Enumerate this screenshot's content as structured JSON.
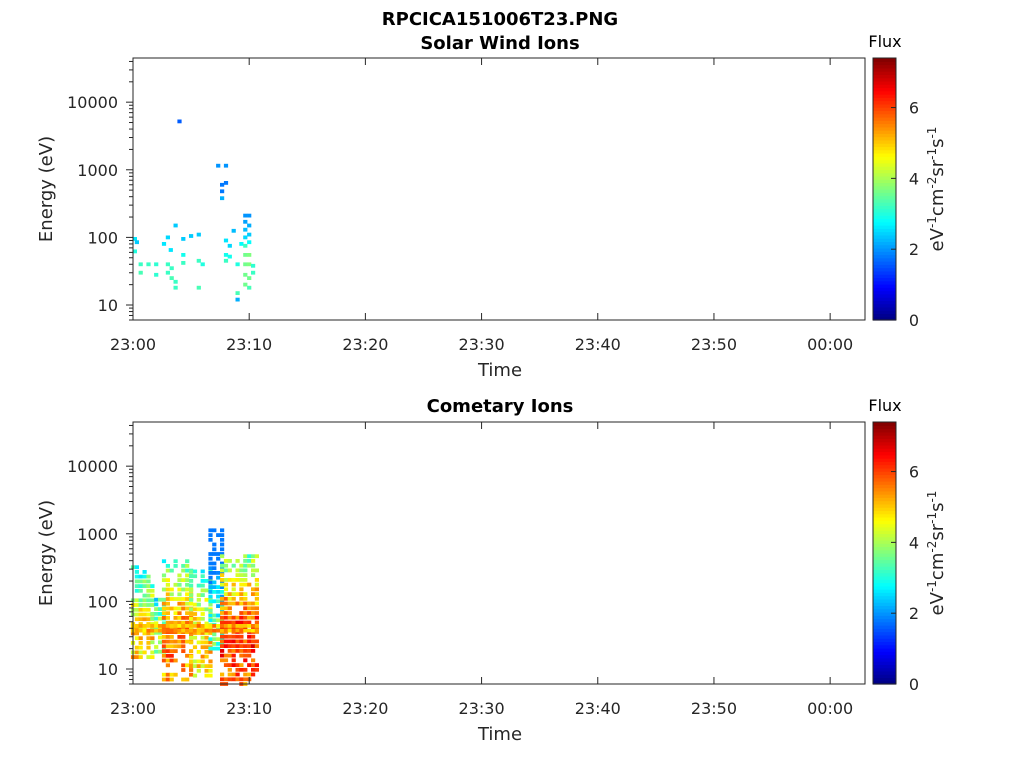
{
  "figure": {
    "main_title": "RPCICA151006T23.PNG"
  },
  "colormap": [
    "#00007f",
    "#0000ff",
    "#007fff",
    "#00ffff",
    "#7fff7f",
    "#ffff00",
    "#ff7f00",
    "#ff0000",
    "#7f0000"
  ],
  "chart_data": [
    {
      "type": "heatmap",
      "title": "Solar Wind Ions",
      "xlabel": "Time",
      "ylabel": "Energy (eV)",
      "x_range": [
        "23:00",
        "00:03"
      ],
      "x_ticks": [
        "23:00",
        "23:10",
        "23:20",
        "23:30",
        "23:40",
        "23:50",
        "00:00"
      ],
      "y_scale": "log",
      "y_range": [
        6,
        45000
      ],
      "y_ticks": [
        {
          "value": 10,
          "label": "10"
        },
        {
          "value": 100,
          "label": "100"
        },
        {
          "value": 1000,
          "label": "1000"
        },
        {
          "value": 10000,
          "label": "10000"
        }
      ],
      "colorbar": {
        "title": "Flux",
        "label": "eV-1cm-2sr-1s-1",
        "range": [
          0,
          7.4
        ],
        "ticks": [
          "0",
          "2",
          "4",
          "6"
        ]
      },
      "cells": [
        [
          "23:00:10",
          95,
          2.6
        ],
        [
          "23:00:10",
          62,
          3.0
        ],
        [
          "23:00:20",
          85,
          2.4
        ],
        [
          "23:00:40",
          40,
          3.2
        ],
        [
          "23:00:40",
          30,
          3.3
        ],
        [
          "23:01:20",
          40,
          3.2
        ],
        [
          "23:02:00",
          40,
          3.1
        ],
        [
          "23:02:00",
          28,
          3.1
        ],
        [
          "23:02:40",
          80,
          2.6
        ],
        [
          "23:03:00",
          100,
          2.5
        ],
        [
          "23:03:00",
          40,
          3.2
        ],
        [
          "23:03:00",
          30,
          3.2
        ],
        [
          "23:03:15",
          65,
          2.6
        ],
        [
          "23:03:20",
          35,
          3.2
        ],
        [
          "23:03:20",
          25,
          3.3
        ],
        [
          "23:03:40",
          150,
          2.4
        ],
        [
          "23:03:40",
          22,
          3.2
        ],
        [
          "23:03:40",
          18,
          3.2
        ],
        [
          "23:04:00",
          5200,
          1.6
        ],
        [
          "23:04:20",
          95,
          2.4
        ],
        [
          "23:04:20",
          55,
          2.9
        ],
        [
          "23:04:20",
          42,
          3.2
        ],
        [
          "23:05:00",
          105,
          2.4
        ],
        [
          "23:05:40",
          110,
          2.4
        ],
        [
          "23:05:40",
          45,
          3.2
        ],
        [
          "23:05:40",
          18,
          3.3
        ],
        [
          "23:06:00",
          40,
          3.0
        ],
        [
          "23:07:20",
          1150,
          2.0
        ],
        [
          "23:07:40",
          600,
          1.8
        ],
        [
          "23:07:40",
          480,
          1.8
        ],
        [
          "23:07:40",
          380,
          2.2
        ],
        [
          "23:08:00",
          1150,
          2.0
        ],
        [
          "23:08:00",
          640,
          1.8
        ],
        [
          "23:08:00",
          90,
          2.6
        ],
        [
          "23:08:00",
          55,
          2.9
        ],
        [
          "23:08:00",
          45,
          3.2
        ],
        [
          "23:08:20",
          75,
          2.5
        ],
        [
          "23:08:20",
          52,
          2.9
        ],
        [
          "23:08:40",
          125,
          2.3
        ],
        [
          "23:09:00",
          12,
          2.2
        ],
        [
          "23:09:00",
          15,
          3.3
        ],
        [
          "23:09:00",
          40,
          3.0
        ],
        [
          "23:09:20",
          80,
          2.8
        ],
        [
          "23:09:40",
          210,
          2.0
        ],
        [
          "23:09:40",
          170,
          2.1
        ],
        [
          "23:09:40",
          130,
          2.3
        ],
        [
          "23:09:40",
          100,
          2.5
        ],
        [
          "23:09:40",
          75,
          3.2
        ],
        [
          "23:09:40",
          55,
          3.6
        ],
        [
          "23:09:40",
          40,
          3.6
        ],
        [
          "23:09:40",
          28,
          3.6
        ],
        [
          "23:09:40",
          20,
          3.6
        ],
        [
          "23:10:00",
          210,
          2.0
        ],
        [
          "23:10:00",
          150,
          2.2
        ],
        [
          "23:10:00",
          110,
          2.4
        ],
        [
          "23:10:00",
          85,
          2.8
        ],
        [
          "23:10:00",
          55,
          3.7
        ],
        [
          "23:10:00",
          40,
          3.7
        ],
        [
          "23:10:00",
          25,
          3.6
        ],
        [
          "23:10:00",
          18,
          3.3
        ],
        [
          "23:10:20",
          38,
          3.1
        ],
        [
          "23:10:20",
          30,
          3.2
        ]
      ]
    },
    {
      "type": "heatmap",
      "title": "Cometary Ions",
      "xlabel": "Time",
      "ylabel": "Energy (eV)",
      "x_range": [
        "23:00",
        "00:03"
      ],
      "x_ticks": [
        "23:00",
        "23:10",
        "23:20",
        "23:30",
        "23:40",
        "23:50",
        "00:00"
      ],
      "y_scale": "log",
      "y_range": [
        6,
        45000
      ],
      "y_ticks": [
        {
          "value": 10,
          "label": "10"
        },
        {
          "value": 100,
          "label": "100"
        },
        {
          "value": 1000,
          "label": "1000"
        },
        {
          "value": 10000,
          "label": "10000"
        }
      ],
      "colorbar": {
        "title": "Flux",
        "label": "eV-1cm-2sr-1s-1",
        "range": [
          0,
          7.4
        ],
        "ticks": [
          "0",
          "2",
          "4",
          "6"
        ]
      },
      "clusters": [
        {
          "t_start": "23:00:00",
          "t_end": "23:01:40",
          "e_top": 350,
          "e_bottom": 15,
          "peak": 5.6
        },
        {
          "t_start": "23:01:40",
          "t_end": "23:02:40",
          "e_top": 110,
          "e_bottom": 18,
          "peak": 4.6
        },
        {
          "t_start": "23:02:40",
          "t_end": "23:05:00",
          "e_top": 450,
          "e_bottom": 7,
          "peak": 6.3
        },
        {
          "t_start": "23:05:00",
          "t_end": "23:06:40",
          "e_top": 280,
          "e_bottom": 8,
          "peak": 5.6
        },
        {
          "t_start": "23:06:40",
          "t_end": "23:07:40",
          "e_top": 1300,
          "e_bottom": 20,
          "peak": 4.2
        },
        {
          "t_start": "23:07:40",
          "t_end": "23:10:40",
          "e_top": 500,
          "e_bottom": 6,
          "peak": 6.8
        }
      ],
      "band": {
        "t_start": "23:00:00",
        "t_end": "23:10:40",
        "e_low": 37,
        "e_high": 46,
        "level": 5.2
      }
    }
  ]
}
